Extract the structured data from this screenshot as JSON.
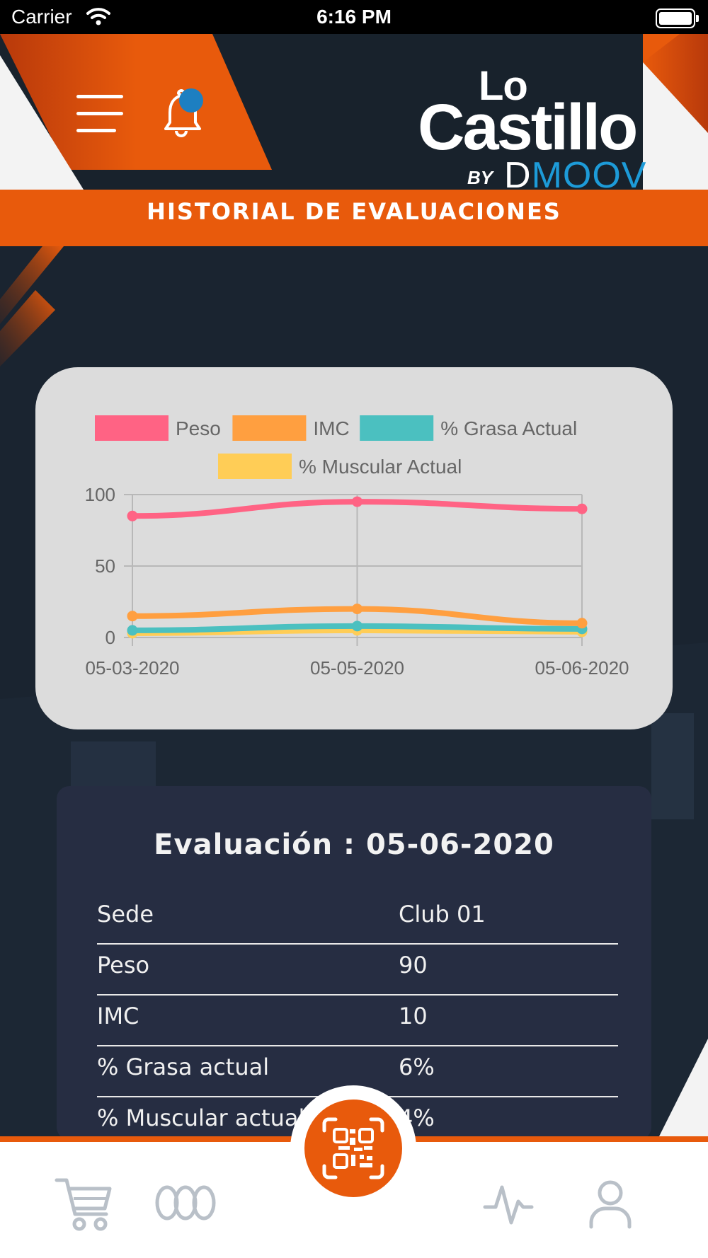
{
  "status_bar": {
    "carrier": "Carrier",
    "time": "6:16 PM"
  },
  "header": {
    "logo_line1": "Lo",
    "logo_line2": "Castillo",
    "logo_by": "BY",
    "logo_d": "D",
    "logo_moov": "MOOV",
    "colors": {
      "accent": "#e85a0c",
      "badge": "#1d7fc1",
      "background": "#18222c"
    }
  },
  "banner": {
    "title": "HISTORIAL DE EVALUACIONES"
  },
  "chart_data": {
    "type": "line",
    "categories": [
      "05-03-2020",
      "05-05-2020",
      "05-06-2020"
    ],
    "series": [
      {
        "name": "Peso",
        "color": "#ff6384",
        "values": [
          85,
          95,
          90
        ]
      },
      {
        "name": "IMC",
        "color": "#ff9f40",
        "values": [
          15,
          20,
          10
        ]
      },
      {
        "name": "% Grasa Actual",
        "color": "#4bc0c0",
        "values": [
          5,
          8,
          6
        ]
      },
      {
        "name": "% Muscular Actual",
        "color": "#ffcd56",
        "values": [
          3,
          5,
          4
        ]
      }
    ],
    "ylim": [
      0,
      100
    ],
    "yticks": [
      0,
      50,
      100
    ],
    "legend": "top",
    "grid": true
  },
  "evaluation": {
    "title": "Evaluación : 05-06-2020",
    "rows": [
      {
        "label": "Sede",
        "value": "Club 01"
      },
      {
        "label": "Peso",
        "value": "90"
      },
      {
        "label": "IMC",
        "value": "10"
      },
      {
        "label": "% Grasa actual",
        "value": "6%"
      },
      {
        "label": "% Muscular actual",
        "value": "4%"
      }
    ]
  },
  "tabbar": {
    "icons": [
      "cart-icon",
      "coins-icon",
      "qr-scan-icon",
      "activity-icon",
      "profile-icon"
    ]
  }
}
